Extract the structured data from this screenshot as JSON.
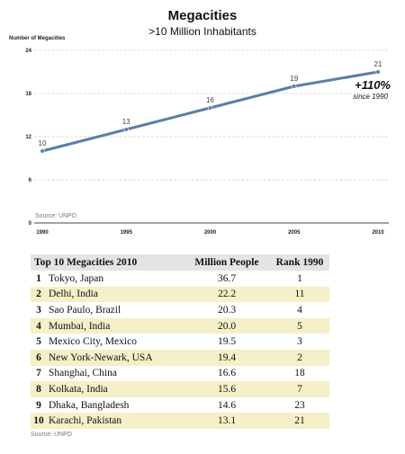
{
  "chart_data": {
    "type": "line",
    "title": "Megacities",
    "subtitle": ">10 Million Inhabitants",
    "ylabel": "Number of Megacities",
    "x": [
      1990,
      1995,
      2000,
      2005,
      2010
    ],
    "x_ticks": [
      "1990",
      "1995",
      "2000",
      "2005",
      "2010"
    ],
    "y_ticks": [
      "0",
      "6",
      "12",
      "18",
      "24"
    ],
    "ylim": [
      0,
      24
    ],
    "series": [
      {
        "values": [
          10,
          13,
          16,
          19,
          21
        ],
        "color": "#5b7fa6"
      }
    ],
    "data_labels": [
      "10",
      "13",
      "16",
      "19",
      "21"
    ],
    "annotation": {
      "value": "+110%",
      "note": "since 1990"
    },
    "source": "Source: UNPD",
    "grid": "dashed horizontal"
  },
  "table": {
    "headers": [
      "Top 10 Megacities 2010",
      "Million People",
      "Rank 1990"
    ],
    "rows": [
      {
        "rank": "1",
        "city": "Tokyo, Japan",
        "people": "36.7",
        "rank1990": "1"
      },
      {
        "rank": "2",
        "city": "Delhi, India",
        "people": "22.2",
        "rank1990": "11"
      },
      {
        "rank": "3",
        "city": "Sao Paulo, Brazil",
        "people": "20.3",
        "rank1990": "4"
      },
      {
        "rank": "4",
        "city": "Mumbai, India",
        "people": "20.0",
        "rank1990": "5"
      },
      {
        "rank": "5",
        "city": "Mexico City, Mexico",
        "people": "19.5",
        "rank1990": "3"
      },
      {
        "rank": "6",
        "city": "New York-Newark, USA",
        "people": "19.4",
        "rank1990": "2"
      },
      {
        "rank": "7",
        "city": "Shanghai, China",
        "people": "16.6",
        "rank1990": "18"
      },
      {
        "rank": "8",
        "city": "Kolkata, India",
        "people": "15.6",
        "rank1990": "7"
      },
      {
        "rank": "9",
        "city": "Dhaka, Bangladesh",
        "people": "14.6",
        "rank1990": "23"
      },
      {
        "rank": "10",
        "city": "Karachi, Pakistan",
        "people": "13.1",
        "rank1990": "21"
      }
    ],
    "source": "Source: UNPD",
    "shade_color": "#f6efc7"
  }
}
